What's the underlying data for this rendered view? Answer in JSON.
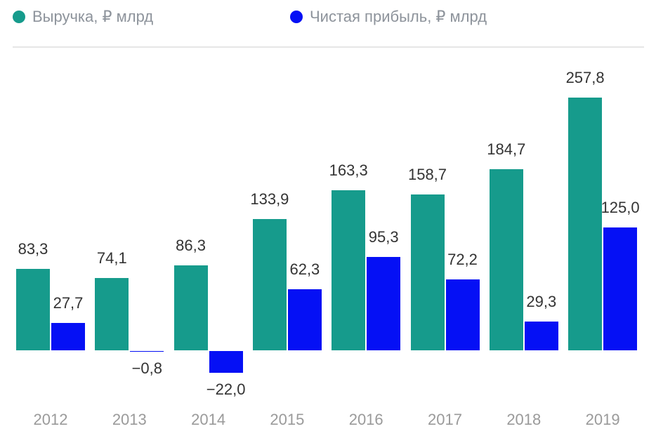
{
  "legend": {
    "items": [
      {
        "label": "Выручка, ₽ млрд",
        "color": "#169b8c"
      },
      {
        "label": "Чистая прибыль, ₽ млрд",
        "color": "#0510f5"
      }
    ]
  },
  "chart_data": {
    "type": "bar",
    "title": "",
    "xlabel": "",
    "ylabel": "",
    "grid": false,
    "legend_position": "top",
    "value_labels_shown": true,
    "axis_lines_shown": false,
    "categories": [
      "2012",
      "2013",
      "2014",
      "2015",
      "2016",
      "2017",
      "2018",
      "2019"
    ],
    "series": [
      {
        "name": "Выручка, ₽ млрд",
        "color": "#169b8c",
        "values": [
          83.3,
          74.1,
          86.3,
          133.9,
          163.3,
          158.7,
          184.7,
          257.8
        ],
        "labels": [
          "83,3",
          "74,1",
          "86,3",
          "133,9",
          "163,3",
          "158,7",
          "184,7",
          "257,8"
        ]
      },
      {
        "name": "Чистая прибыль, ₽ млрд",
        "color": "#0510f5",
        "values": [
          27.7,
          -0.8,
          -22.0,
          62.3,
          95.3,
          72.2,
          29.3,
          125.0
        ],
        "labels": [
          "27,7",
          "−0,8",
          "−22,0",
          "62,3",
          "95,3",
          "72,2",
          "29,3",
          "125,0"
        ]
      }
    ]
  }
}
